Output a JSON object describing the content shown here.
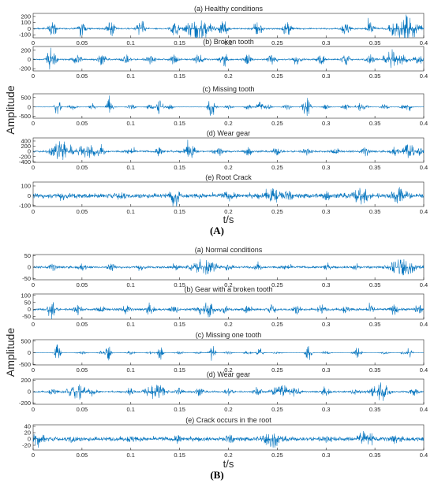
{
  "chart_data": [
    {
      "id": "A",
      "type": "line",
      "panel_label": "(A)",
      "ylabel": "Amplitude",
      "xlabel": "t/s",
      "xlim": [
        0,
        0.4
      ],
      "xticks": [
        "0",
        "0.05",
        "0.1",
        "0.15",
        "0.2",
        "0.25",
        "0.3",
        "0.35",
        "0.4"
      ],
      "series_color": "#0072BD",
      "subplots": [
        {
          "title": "(a) Healthy conditions",
          "ylim": [
            -150,
            250
          ],
          "yticks": [
            200,
            100,
            0,
            -100
          ],
          "shape": {
            "noise": 10,
            "peak": 180,
            "bursts": [
              0.02,
              0.05,
              0.08,
              0.11,
              0.145,
              0.195,
              0.23,
              0.26,
              0.32,
              0.345
            ],
            "big": [
              {
                "t": 0.17,
                "amp": 220,
                "w": 0.012
              },
              {
                "t": 0.38,
                "amp": 230,
                "w": 0.014
              }
            ]
          }
        },
        {
          "title": "(b) Broken tooth",
          "ylim": [
            -250,
            280
          ],
          "yticks": [
            200,
            0,
            -200
          ],
          "shape": {
            "noise": 14,
            "peak": 160,
            "bursts": [
              0.02,
              0.045,
              0.07,
              0.095,
              0.12,
              0.145,
              0.17,
              0.195,
              0.22,
              0.245,
              0.27,
              0.295,
              0.32,
              0.345,
              0.37,
              0.395
            ],
            "big": [
              {
                "t": 0.017,
                "amp": 240,
                "w": 0.003
              },
              {
                "t": 0.37,
                "amp": 210,
                "w": 0.012
              }
            ]
          }
        },
        {
          "title": "(c) Missing tooth",
          "ylim": [
            -600,
            700
          ],
          "yticks": [
            500,
            0,
            -500
          ],
          "shape": {
            "noise": 6,
            "peak": 200,
            "bursts": [
              0.04,
              0.06,
              0.08,
              0.1,
              0.12,
              0.14,
              0.2,
              0.22,
              0.24,
              0.26,
              0.3,
              0.32,
              0.34,
              0.36,
              0.38
            ],
            "big": [
              {
                "t": 0.025,
                "amp": 520,
                "w": 0.003
              },
              {
                "t": 0.078,
                "amp": 500,
                "w": 0.003
              },
              {
                "t": 0.13,
                "amp": 480,
                "w": 0.003
              },
              {
                "t": 0.183,
                "amp": 560,
                "w": 0.004
              },
              {
                "t": 0.232,
                "amp": 420,
                "w": 0.003
              },
              {
                "t": 0.28,
                "amp": 540,
                "w": 0.004
              },
              {
                "t": 0.333,
                "amp": 300,
                "w": 0.003
              },
              {
                "t": 0.385,
                "amp": 260,
                "w": 0.003
              }
            ]
          }
        },
        {
          "title": "(d) Wear gear",
          "ylim": [
            -420,
            520
          ],
          "yticks": [
            400,
            200,
            0,
            -200,
            -400
          ],
          "shape": {
            "noise": 30,
            "peak": 220,
            "bursts": [
              0.07,
              0.1,
              0.13,
              0.16,
              0.19,
              0.22,
              0.25,
              0.28,
              0.31,
              0.34,
              0.37,
              0.395
            ],
            "big": [
              {
                "t": 0.03,
                "amp": 420,
                "w": 0.012
              },
              {
                "t": 0.055,
                "amp": 330,
                "w": 0.01
              },
              {
                "t": 0.16,
                "amp": 300,
                "w": 0.006
              },
              {
                "t": 0.385,
                "amp": 360,
                "w": 0.006
              }
            ]
          }
        },
        {
          "title": "(e) Root Crack",
          "ylim": [
            -110,
            140
          ],
          "yticks": [
            100,
            0,
            -100
          ],
          "shape": {
            "noise": 22,
            "peak": 45,
            "bursts": [
              0.03,
              0.09,
              0.2,
              0.26,
              0.3
            ],
            "big": [
              {
                "t": 0.145,
                "amp": 120,
                "w": 0.005
              },
              {
                "t": 0.245,
                "amp": 70,
                "w": 0.01
              },
              {
                "t": 0.335,
                "amp": 100,
                "w": 0.008
              },
              {
                "t": 0.375,
                "amp": 80,
                "w": 0.01
              }
            ]
          }
        }
      ]
    },
    {
      "id": "B",
      "type": "line",
      "panel_label": "(B)",
      "ylabel": "Amplitude",
      "xlabel": "t/s",
      "xlim": [
        0,
        0.4
      ],
      "xticks": [
        "0",
        "0.05",
        "0.1",
        "0.15",
        "0.2",
        "0.25",
        "0.3",
        "0.35",
        "0.4"
      ],
      "series_color": "#0072BD",
      "subplots": [
        {
          "title": "(a) Normal conditions",
          "ylim": [
            -55,
            55
          ],
          "yticks": [
            50,
            0,
            -50
          ],
          "shape": {
            "noise": 4,
            "peak": 18,
            "bursts": [
              0.02,
              0.05,
              0.08,
              0.11,
              0.145,
              0.2,
              0.23,
              0.26,
              0.3,
              0.33
            ],
            "big": [
              {
                "t": 0.175,
                "amp": 35,
                "w": 0.014
              },
              {
                "t": 0.378,
                "amp": 38,
                "w": 0.014
              }
            ]
          }
        },
        {
          "title": "(b) Gear with a broken tooth",
          "ylim": [
            -70,
            110
          ],
          "yticks": [
            100,
            50,
            0,
            -50
          ],
          "shape": {
            "noise": 7,
            "peak": 40,
            "bursts": [
              0.02,
              0.045,
              0.07,
              0.095,
              0.12,
              0.145,
              0.17,
              0.195,
              0.22,
              0.245,
              0.27,
              0.295,
              0.32,
              0.345,
              0.37,
              0.395
            ],
            "big": [
              {
                "t": 0.018,
                "amp": 80,
                "w": 0.003
              },
              {
                "t": 0.18,
                "amp": 60,
                "w": 0.006
              }
            ]
          }
        },
        {
          "title": "(c) Missing one tooth",
          "ylim": [
            -520,
            560
          ],
          "yticks": [
            500,
            0,
            -500
          ],
          "shape": {
            "noise": 4,
            "peak": 90,
            "bursts": [
              0.05,
              0.07,
              0.1,
              0.12,
              0.15,
              0.17,
              0.2,
              0.22,
              0.25,
              0.3,
              0.33,
              0.36,
              0.38
            ],
            "big": [
              {
                "t": 0.025,
                "amp": 360,
                "w": 0.003
              },
              {
                "t": 0.077,
                "amp": 340,
                "w": 0.003
              },
              {
                "t": 0.13,
                "amp": 330,
                "w": 0.003
              },
              {
                "t": 0.183,
                "amp": 380,
                "w": 0.003
              },
              {
                "t": 0.232,
                "amp": 300,
                "w": 0.003
              },
              {
                "t": 0.282,
                "amp": 380,
                "w": 0.003
              },
              {
                "t": 0.333,
                "amp": 260,
                "w": 0.003
              },
              {
                "t": 0.385,
                "amp": 230,
                "w": 0.003
              }
            ]
          }
        },
        {
          "title": "(d) Wear gear",
          "ylim": [
            -220,
            220
          ],
          "yticks": [
            200,
            0,
            -200
          ],
          "shape": {
            "noise": 12,
            "peak": 90,
            "bursts": [
              0.02,
              0.06,
              0.1,
              0.15,
              0.17,
              0.2,
              0.23,
              0.27,
              0.3,
              0.33,
              0.36,
              0.39
            ],
            "big": [
              {
                "t": 0.045,
                "amp": 150,
                "w": 0.01
              },
              {
                "t": 0.125,
                "amp": 150,
                "w": 0.01
              },
              {
                "t": 0.255,
                "amp": 140,
                "w": 0.01
              },
              {
                "t": 0.355,
                "amp": 150,
                "w": 0.01
              }
            ]
          }
        },
        {
          "title": "(e) Crack occurs in the root",
          "ylim": [
            -35,
            45
          ],
          "yticks": [
            40,
            20,
            0,
            -20
          ],
          "shape": {
            "noise": 6,
            "peak": 12,
            "bursts": [
              0.04,
              0.1,
              0.15,
              0.2,
              0.3,
              0.37
            ],
            "big": [
              {
                "t": 0.005,
                "amp": 25,
                "w": 0.006
              },
              {
                "t": 0.245,
                "amp": 25,
                "w": 0.01
              },
              {
                "t": 0.34,
                "amp": 30,
                "w": 0.008
              }
            ]
          }
        }
      ]
    }
  ]
}
